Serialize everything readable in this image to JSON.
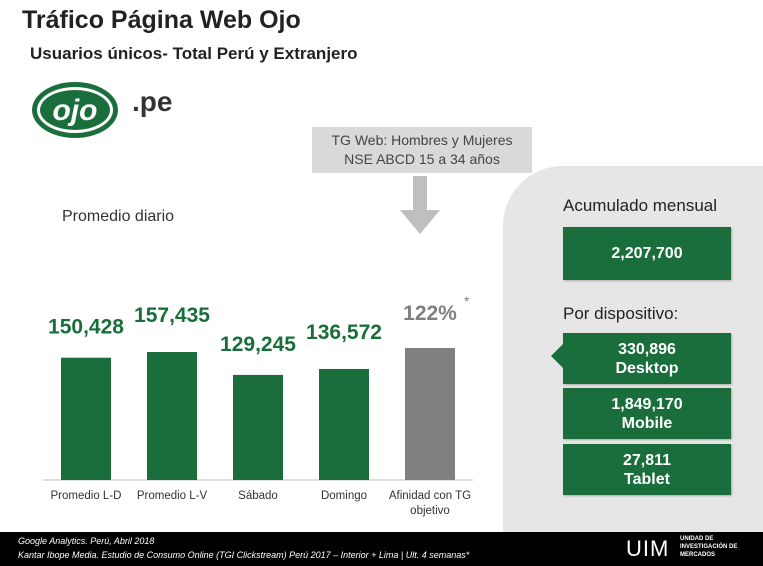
{
  "page": {
    "title": "Tráfico Página Web Ojo",
    "subtitle": "Usuarios únicos- Total Perú y Extranjero",
    "logo_text": "ojo",
    "logo_suffix": ".pe",
    "target_box": {
      "line1": "TG Web: Hombres y Mujeres",
      "line2": "NSE ABCD 15 a 34 años"
    },
    "chart_heading": "Promedio diario"
  },
  "chart_data": {
    "type": "bar",
    "categories": [
      "Promedio L-D",
      "Promedio L-V",
      "Sábado",
      "Domingo",
      "Afinidad con TG objetivo"
    ],
    "values": [
      150428,
      157435,
      129245,
      136572,
      122
    ],
    "value_labels": [
      "150,428",
      "157,435",
      "129,245",
      "136,572",
      "122%"
    ],
    "footnote_marker": "*",
    "bar_colors": [
      "#1a6e3b",
      "#1a6e3b",
      "#1a6e3b",
      "#1a6e3b",
      "#808080"
    ],
    "value_label_colors": [
      "#1a6e3b",
      "#1a6e3b",
      "#1a6e3b",
      "#1a6e3b",
      "#7f7f7f"
    ]
  },
  "summary": {
    "monthly_label": "Acumulado mensual",
    "monthly_value": "2,207,700",
    "device_label": "Por dispositivo:",
    "devices": [
      {
        "value": "330,896",
        "name": "Desktop"
      },
      {
        "value": "1,849,170",
        "name": "Mobile"
      },
      {
        "value": "27,811",
        "name": "Tablet"
      }
    ]
  },
  "footer": {
    "source1": "Google Analytics. Perú,  Abril 2018",
    "source2": "Kantar Ibope Media. Estudio de Consumo Online (TGI Clickstream) Perú 2017 – Interior + Lima | Ult. 4 semanas*",
    "brand": "UIM",
    "brand_sub1": "UNIDAD DE",
    "brand_sub2": "INVESTIGACIÓN DE",
    "brand_sub3": "MERCADOS"
  },
  "colors": {
    "accent": "#1a6e3b",
    "gray_bar": "#808080",
    "panel": "#e6e6e6"
  }
}
